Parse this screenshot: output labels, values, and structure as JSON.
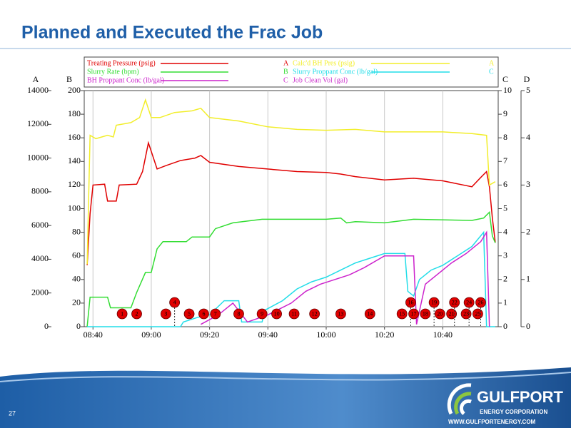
{
  "page": {
    "title": "Planned and Executed the Frac Job",
    "slide_number": "27",
    "logo": {
      "name": "GULFPORT",
      "subtitle": "ENERGY CORPORATION",
      "url": "WWW.GULFPORTENERGY.COM"
    }
  },
  "chart_data": {
    "type": "line",
    "xlim": [
      "08:37",
      "10:59"
    ],
    "xticks": [
      "08:40",
      "09:00",
      "09:20",
      "09:40",
      "10:00",
      "10:20",
      "10:40"
    ],
    "grid": true,
    "axes": [
      {
        "name": "A",
        "side": "left",
        "lim": [
          0,
          14000
        ],
        "ticks": [
          0,
          2000,
          4000,
          6000,
          8000,
          10000,
          12000,
          14000
        ]
      },
      {
        "name": "B",
        "side": "left",
        "lim": [
          0,
          200
        ],
        "ticks": [
          0,
          20,
          40,
          60,
          80,
          100,
          120,
          140,
          160,
          180,
          200
        ]
      },
      {
        "name": "C",
        "side": "right",
        "lim": [
          0,
          10
        ],
        "ticks": [
          0,
          1,
          2,
          3,
          4,
          5,
          6,
          7,
          8,
          9,
          10
        ]
      },
      {
        "name": "D",
        "side": "right",
        "lim": [
          0,
          5
        ],
        "ticks": [
          0,
          1,
          2,
          3,
          4,
          5
        ]
      }
    ],
    "series": [
      {
        "name": "Treating Pressure (psig)",
        "axis": "A",
        "color": "#e00000",
        "x": [
          "08:38",
          "08:39",
          "08:40",
          "08:44",
          "08:45",
          "08:48",
          "08:49",
          "08:55",
          "08:57",
          "08:59",
          "09:00",
          "09:02",
          "09:05",
          "09:10",
          "09:15",
          "09:17",
          "09:20",
          "09:30",
          "09:50",
          "10:00",
          "10:05",
          "10:10",
          "10:20",
          "10:30",
          "10:40",
          "10:50",
          "10:53",
          "10:55",
          "10:56",
          "10:57",
          "10:58"
        ],
        "values": [
          3650,
          6700,
          8400,
          8450,
          7450,
          7450,
          8400,
          8450,
          9200,
          10900,
          10400,
          9350,
          9550,
          9850,
          10000,
          10150,
          9750,
          9500,
          9200,
          9150,
          9050,
          8900,
          8700,
          8800,
          8650,
          8300,
          8850,
          9200,
          8300,
          6450,
          5000
        ]
      },
      {
        "name": "Calc'd BH Pres (psig)",
        "axis": "A",
        "color": "#f2ee2a",
        "x": [
          "08:38",
          "08:39",
          "08:41",
          "08:45",
          "08:47",
          "08:48",
          "08:53",
          "08:56",
          "08:58",
          "09:00",
          "09:03",
          "09:08",
          "09:14",
          "09:17",
          "09:20",
          "09:30",
          "09:40",
          "09:50",
          "10:00",
          "10:10",
          "10:20",
          "10:30",
          "10:40",
          "10:50",
          "10:55",
          "10:56",
          "10:58"
        ],
        "values": [
          3700,
          11350,
          11150,
          11350,
          11250,
          11950,
          12100,
          12400,
          13450,
          12400,
          12400,
          12700,
          12800,
          12950,
          12400,
          12200,
          11850,
          11700,
          11650,
          11700,
          11550,
          11550,
          11550,
          11450,
          11350,
          8400,
          8600
        ]
      },
      {
        "name": "Slurry Rate (bpm)",
        "axis": "B",
        "color": "#33dd33",
        "x": [
          "08:38",
          "08:39",
          "08:45",
          "08:46",
          "08:53",
          "08:55",
          "08:58",
          "09:00",
          "09:02",
          "09:04",
          "09:12",
          "09:14",
          "09:20",
          "09:22",
          "09:28",
          "09:38",
          "10:00",
          "10:05",
          "10:07",
          "10:10",
          "10:20",
          "10:30",
          "10:50",
          "10:54",
          "10:56",
          "10:57",
          "10:58"
        ],
        "values": [
          0,
          25,
          25,
          16,
          16,
          29,
          46,
          46,
          66,
          72,
          72,
          76,
          76,
          83,
          88,
          91,
          91,
          92,
          88,
          89,
          88,
          91,
          90,
          92,
          97,
          77,
          71
        ]
      },
      {
        "name": "Slurry Proppant Conc (lb/gal)",
        "axis": "C",
        "color": "#22dde8",
        "x": [
          "08:38",
          "09:10",
          "09:11",
          "09:16",
          "09:20",
          "09:25",
          "09:30",
          "09:31",
          "09:38",
          "09:39",
          "09:45",
          "09:50",
          "09:55",
          "10:00",
          "10:05",
          "10:10",
          "10:15",
          "10:20",
          "10:27",
          "10:28",
          "10:30",
          "10:32",
          "10:36",
          "10:40",
          "10:45",
          "10:50",
          "10:54",
          "10:55",
          "10:58"
        ],
        "values": [
          0,
          0,
          0.2,
          0.4,
          0.5,
          1.1,
          1.1,
          0.2,
          0.2,
          0.7,
          1.1,
          1.6,
          1.9,
          2.1,
          2.4,
          2.7,
          2.9,
          3.1,
          3.1,
          1.5,
          1.3,
          2.0,
          2.4,
          2.6,
          3.0,
          3.4,
          4.0,
          0,
          0
        ]
      },
      {
        "name": "BH Proppant Conc (lb/gal)",
        "axis": "C",
        "color": "#cc22cc",
        "x": [
          "09:17",
          "09:23",
          "09:28",
          "09:33",
          "09:40",
          "09:48",
          "09:53",
          "09:58",
          "10:03",
          "10:08",
          "10:13",
          "10:20",
          "10:30",
          "10:31",
          "10:34",
          "10:38",
          "10:43",
          "10:48",
          "10:53",
          "10:55",
          "10:56"
        ],
        "values": [
          0.1,
          0.5,
          1.0,
          0.2,
          0.5,
          1.0,
          1.5,
          1.8,
          2.0,
          2.2,
          2.5,
          3.0,
          3.0,
          0.1,
          1.8,
          2.2,
          2.7,
          3.1,
          3.6,
          4.0,
          0
        ]
      },
      {
        "name": "Job Clean Vol (gal)",
        "color": "#cc33cc",
        "x": [],
        "values": []
      }
    ],
    "events": {
      "x": [
        "08:50",
        "08:55",
        "09:05",
        "09:08",
        "09:13",
        "09:18",
        "09:22",
        "09:30",
        "09:38",
        "09:43",
        "09:49",
        "09:56",
        "10:05",
        "10:15",
        "10:26",
        "10:29",
        "10:30",
        "10:34",
        "10:37",
        "10:39",
        "10:43",
        "10:44",
        "10:48",
        "10:49",
        "10:52",
        "10:53"
      ],
      "labels": [
        "1",
        "2",
        "3",
        "4",
        "5",
        "6",
        "7",
        "8",
        "9",
        "10",
        "11",
        "12",
        "13",
        "14",
        "15",
        "16",
        "17",
        "18",
        "19",
        "20",
        "21",
        "22",
        "23",
        "24",
        "25",
        "26"
      ]
    }
  }
}
